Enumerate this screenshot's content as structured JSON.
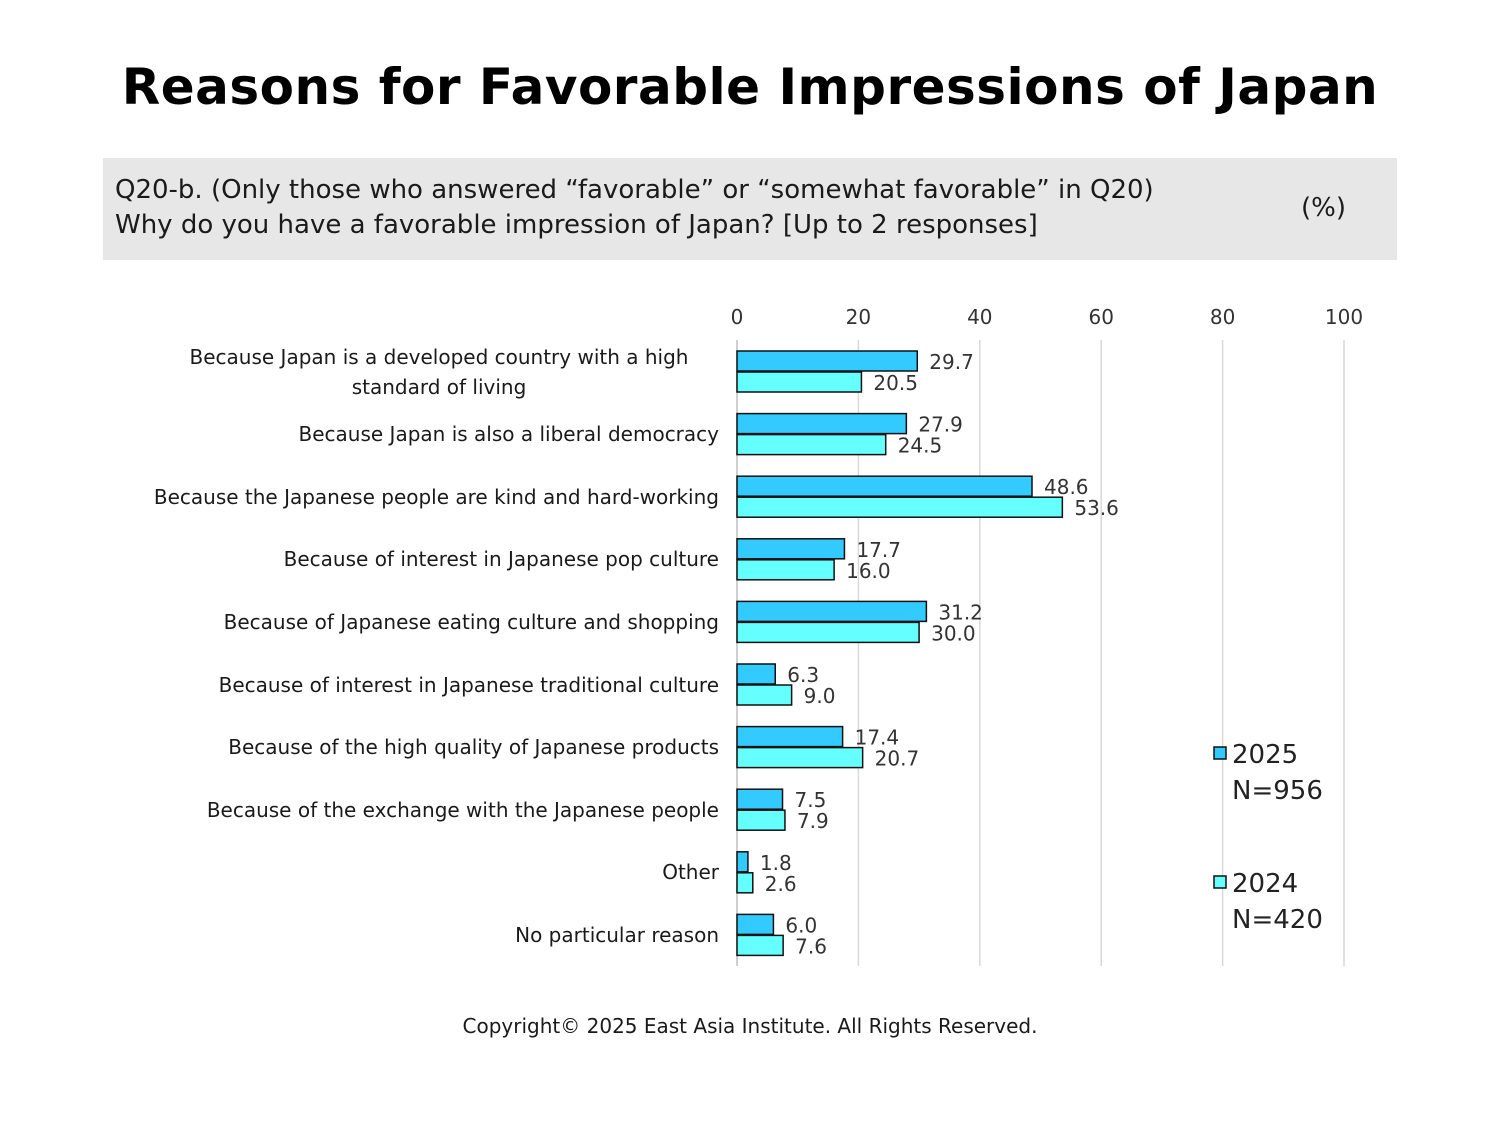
{
  "title": "Reasons for Favorable Impressions of Japan",
  "question": {
    "line1": "Q20-b. (Only those who answered “favorable” or “somewhat favorable” in Q20)",
    "line2": "Why do you have a favorable impression of Japan? [Up to 2 responses]",
    "unit": "(%)"
  },
  "copyright": "Copyright© 2025 East Asia Institute. All Rights Reserved.",
  "colors": {
    "series_2025": "#33cbff",
    "series_2024": "#66ffff",
    "bar_stroke": "#111111",
    "grid": "#d9d9d9"
  },
  "chart_data": {
    "type": "bar",
    "orientation": "horizontal",
    "categories": [
      "Because Japan is a developed country with a high standard of living",
      "Because Japan is also a liberal democracy",
      "Because the Japanese people are kind and hard-working",
      "Because of interest in Japanese pop culture",
      "Because of Japanese eating culture and shopping",
      "Because of interest in Japanese traditional culture",
      "Because of the high quality of Japanese products",
      "Because of the exchange with the Japanese people",
      "Other",
      "No particular reason"
    ],
    "series": [
      {
        "name": "2025",
        "sample": "N=956",
        "values": [
          29.7,
          27.9,
          48.6,
          17.7,
          31.2,
          6.3,
          17.4,
          7.5,
          1.8,
          6.0
        ],
        "labels": [
          "29.7",
          "27.9",
          "48.6",
          "17.7",
          "31.2",
          "6.3",
          "17.4",
          "7.5",
          "1.8",
          "6.0"
        ]
      },
      {
        "name": "2024",
        "sample": "N=420",
        "values": [
          20.5,
          24.5,
          53.6,
          16.0,
          30.0,
          9.0,
          20.7,
          7.9,
          2.6,
          7.6
        ],
        "labels": [
          "20.5",
          "24.5",
          "53.6",
          "16.0",
          "30.0",
          "9.0",
          "20.7",
          "7.9",
          "2.6",
          "7.6"
        ]
      }
    ],
    "xlim": [
      0,
      100
    ],
    "xticks": [
      "0",
      "20",
      "40",
      "60",
      "80",
      "100"
    ],
    "xtick_values": [
      0,
      20,
      40,
      60,
      80,
      100
    ],
    "grid": true,
    "legend_position": "right"
  }
}
